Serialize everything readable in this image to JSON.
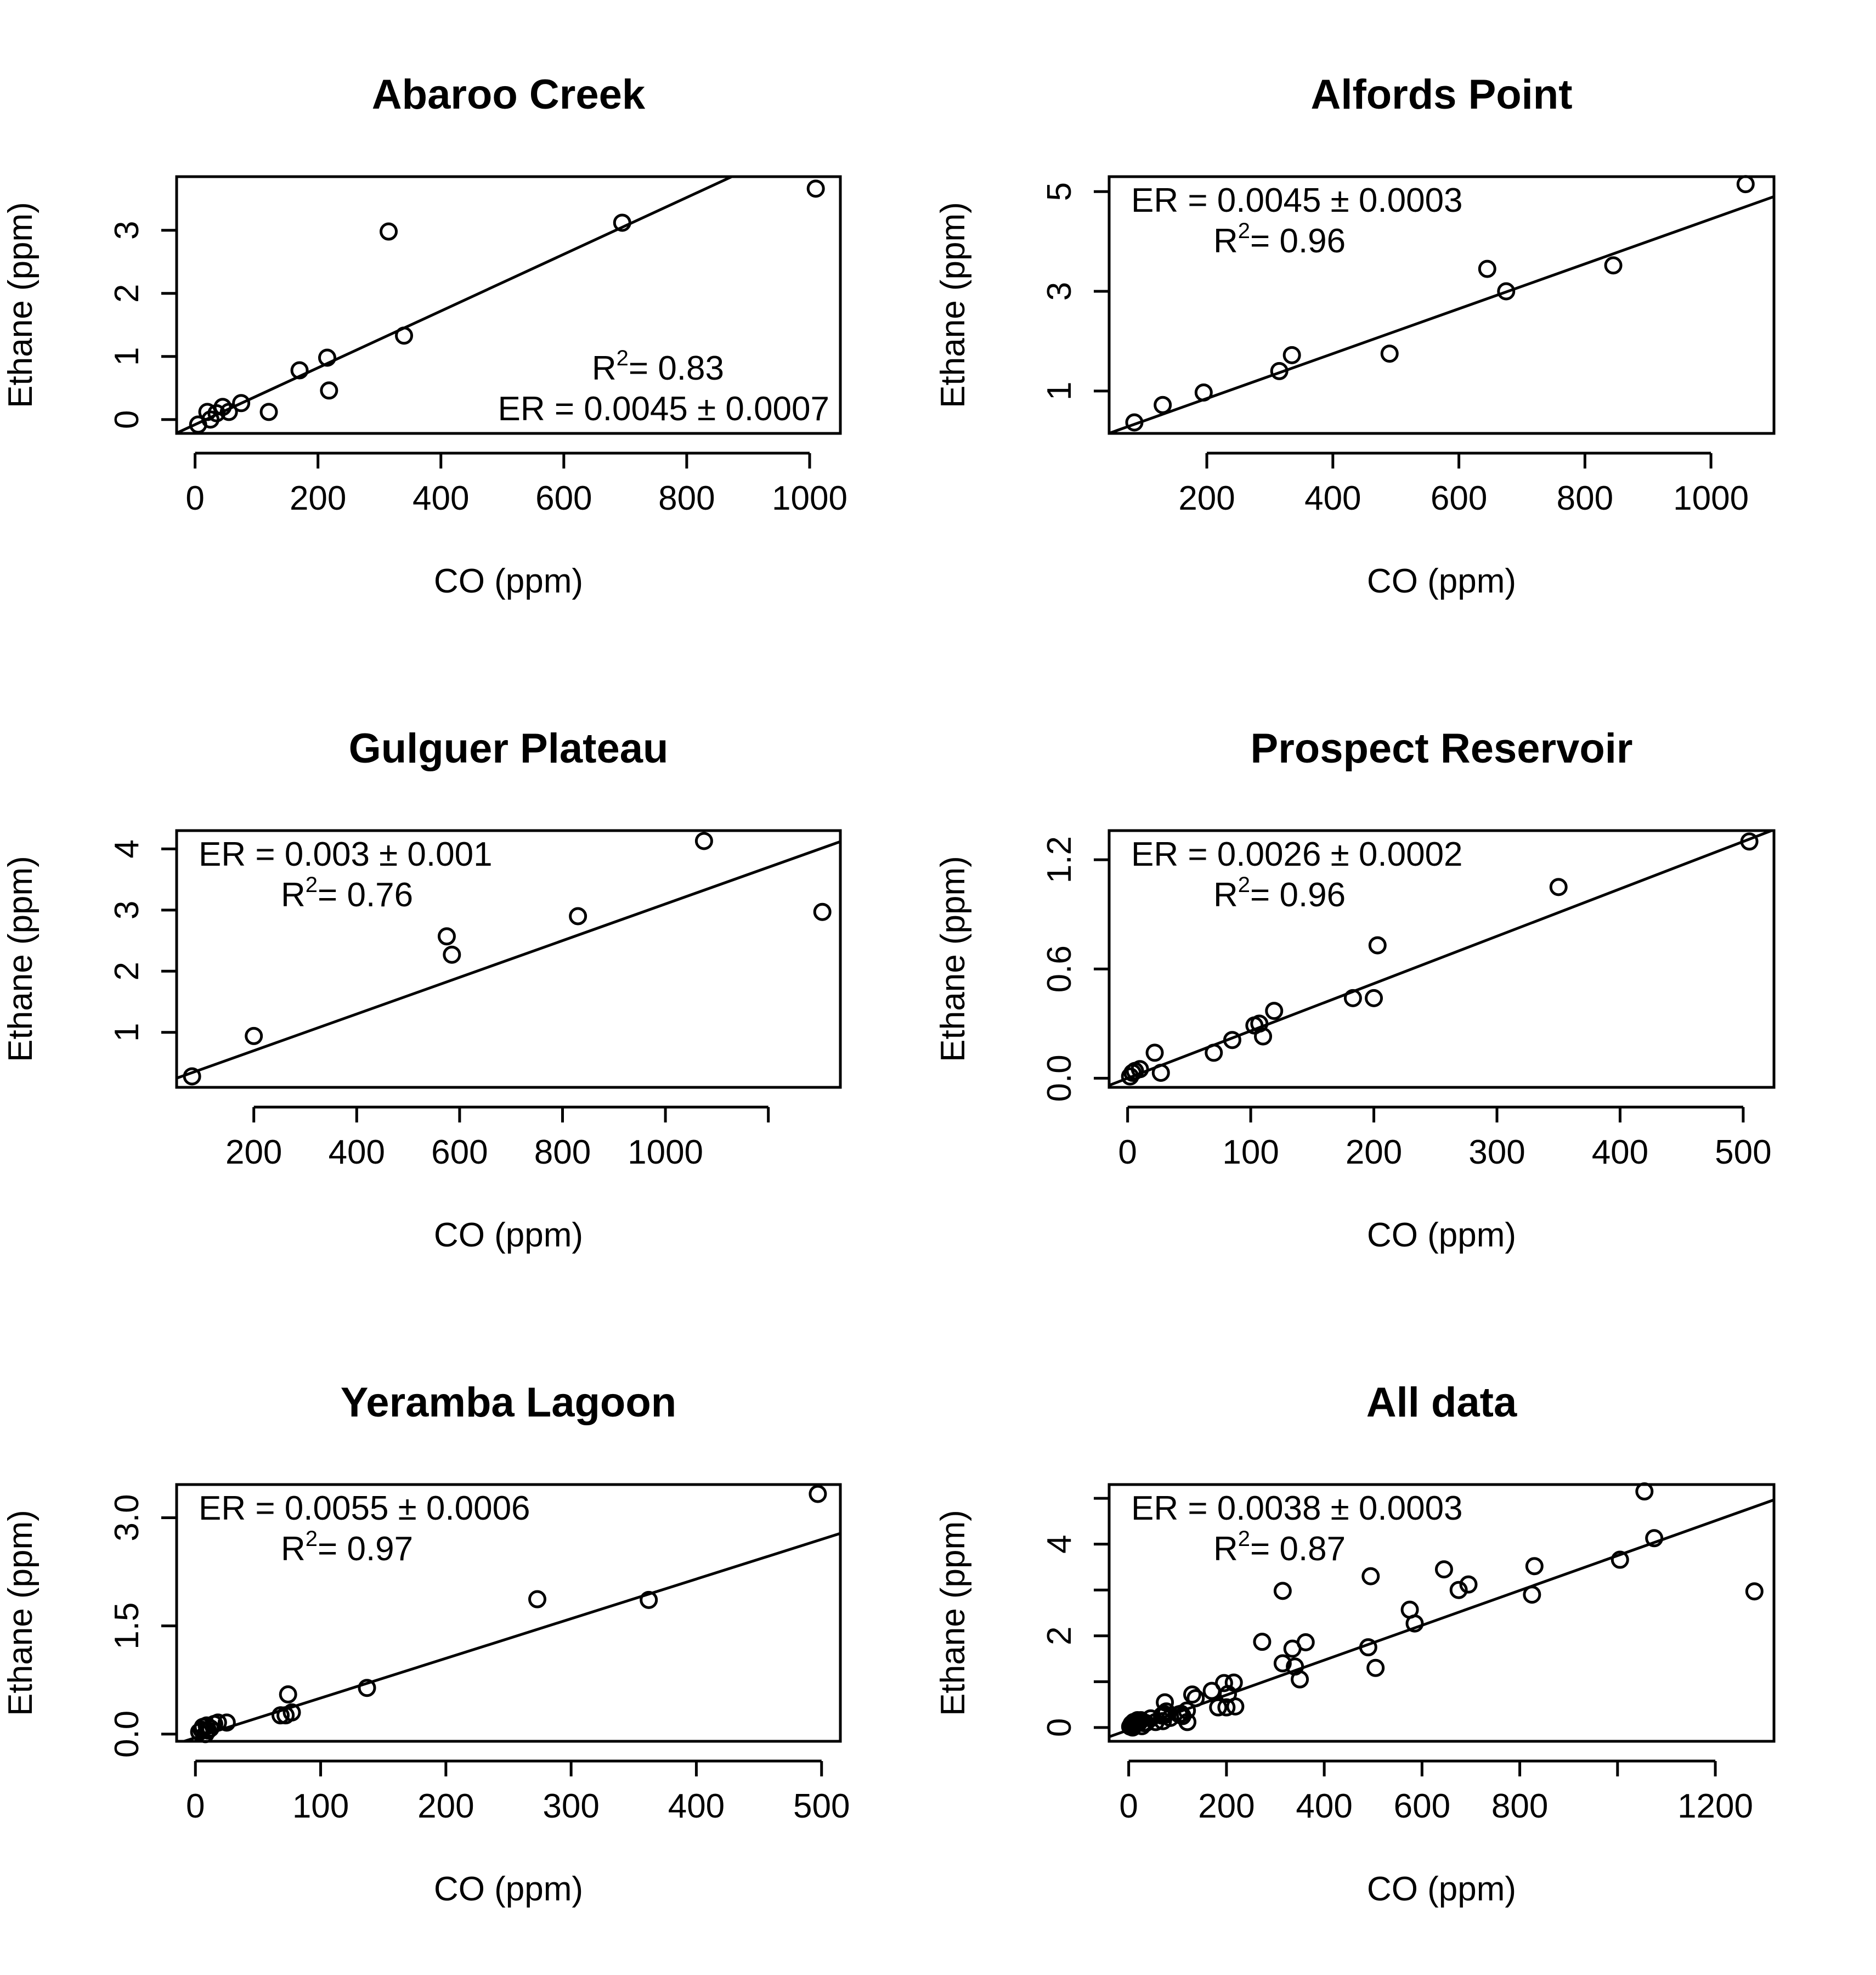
{
  "chart_data": [
    {
      "type": "scatter",
      "title": "Abaroo Creek",
      "xlabel": "CO (ppm)",
      "ylabel": "Ethane (ppm)",
      "xlim": [
        -30,
        1050
      ],
      "ylim": [
        -0.22,
        3.85
      ],
      "xticks": [
        0,
        200,
        400,
        600,
        800,
        1000
      ],
      "yticks": [
        0,
        1,
        2,
        3
      ],
      "annotations": {
        "r2": "= 0.83",
        "er": "ER = 0.0045 ± 0.0007"
      },
      "annotation_placement": "bottom-right",
      "fit": {
        "slope": 0.0045,
        "intercept": -0.08
      },
      "x": [
        5,
        20,
        25,
        35,
        45,
        55,
        75,
        120,
        170,
        215,
        218,
        315,
        340,
        695,
        1010
      ],
      "y": [
        -0.08,
        0.12,
        0.0,
        0.1,
        0.2,
        0.12,
        0.26,
        0.12,
        0.78,
        0.98,
        0.46,
        2.98,
        1.33,
        3.12,
        3.66
      ]
    },
    {
      "type": "scatter",
      "title": "Alfords Point",
      "xlabel": "CO (ppm)",
      "ylabel": "Ethane (ppm)",
      "xlim": [
        45,
        1100
      ],
      "ylim": [
        0.15,
        5.3
      ],
      "xticks": [
        200,
        400,
        600,
        800,
        1000
      ],
      "yticks": [
        1,
        3,
        5
      ],
      "annotations": {
        "er": "ER = 0.0045 ± 0.0003",
        "r2": "= 0.96"
      },
      "annotation_placement": "top-left",
      "fit": {
        "slope": 0.0045,
        "intercept": -0.05
      },
      "x": [
        85,
        130,
        195,
        315,
        335,
        490,
        645,
        675,
        845,
        1055
      ],
      "y": [
        0.37,
        0.72,
        0.97,
        1.4,
        1.72,
        1.75,
        3.45,
        3.0,
        3.52,
        5.15
      ]
    },
    {
      "type": "scatter",
      "title": "Gulguer Plateau",
      "xlabel": "CO (ppm)",
      "ylabel": "Ethane (ppm)",
      "xlim": [
        50,
        1340
      ],
      "ylim": [
        0.1,
        4.3
      ],
      "xticks": [
        200,
        400,
        600,
        800,
        1000,
        1200
      ],
      "xticklabels": [
        "200",
        "400",
        "600",
        "800",
        "1000",
        ""
      ],
      "yticks": [
        1,
        2,
        3,
        4
      ],
      "annotations": {
        "er": "ER = 0.003 ± 0.001",
        "r2": "= 0.76"
      },
      "annotation_placement": "top-left",
      "fit": {
        "slope": 0.003,
        "intercept": 0.1
      },
      "x": [
        80,
        200,
        575,
        585,
        830,
        1075,
        1305
      ],
      "y": [
        0.28,
        0.94,
        2.57,
        2.27,
        2.9,
        4.13,
        2.97
      ]
    },
    {
      "type": "scatter",
      "title": "Prospect Reservoir",
      "xlabel": "CO (ppm)",
      "ylabel": "Ethane (ppm)",
      "xlim": [
        -15,
        525
      ],
      "ylim": [
        -0.05,
        1.36
      ],
      "xticks": [
        0,
        100,
        200,
        300,
        400,
        500
      ],
      "yticks": [
        0.0,
        0.6,
        1.2
      ],
      "yticklabels": [
        "0.0",
        "0.6",
        "1.2"
      ],
      "annotations": {
        "er": "ER = 0.0026 ± 0.0002",
        "r2": "= 0.96"
      },
      "annotation_placement": "top-left",
      "fit": {
        "slope": 0.0026,
        "intercept": 0.0
      },
      "x": [
        2,
        4,
        6,
        10,
        22,
        27,
        70,
        85,
        103,
        107,
        110,
        119,
        183,
        200,
        203,
        350,
        505
      ],
      "y": [
        0.01,
        0.03,
        0.04,
        0.05,
        0.14,
        0.03,
        0.14,
        0.21,
        0.29,
        0.3,
        0.23,
        0.37,
        0.44,
        0.44,
        0.73,
        1.05,
        1.3
      ]
    },
    {
      "type": "scatter",
      "title": "Yeramba Lagoon",
      "xlabel": "CO (ppm)",
      "ylabel": "Ethane (ppm)",
      "xlim": [
        -15,
        515
      ],
      "ylim": [
        -0.1,
        3.46
      ],
      "xticks": [
        0,
        100,
        200,
        300,
        400,
        500
      ],
      "yticks": [
        0.0,
        1.5,
        3.0
      ],
      "yticklabels": [
        "0.0",
        "1.5",
        "3.0"
      ],
      "annotations": {
        "er": "ER = 0.0055 ± 0.0006",
        "r2": "= 0.97"
      },
      "annotation_placement": "top-left",
      "fit": {
        "slope": 0.0055,
        "intercept": -0.05
      },
      "x": [
        3,
        5,
        6,
        8,
        9,
        10,
        12,
        15,
        18,
        25,
        68,
        72,
        74,
        77,
        137,
        273,
        362,
        497
      ],
      "y": [
        0.03,
        0.06,
        0.1,
        0.0,
        0.12,
        0.05,
        0.08,
        0.14,
        0.16,
        0.16,
        0.26,
        0.26,
        0.55,
        0.3,
        0.64,
        1.87,
        1.86,
        3.33
      ]
    },
    {
      "type": "scatter",
      "title": "All data",
      "xlabel": "CO (ppm)",
      "ylabel": "Ethane (ppm)",
      "xlim": [
        -40,
        1320
      ],
      "ylim": [
        -0.3,
        5.3
      ],
      "xticks": [
        0,
        200,
        400,
        600,
        800,
        1000,
        1200
      ],
      "xticklabels": [
        "0",
        "200",
        "400",
        "600",
        "800",
        "",
        "1200"
      ],
      "yticks": [
        0,
        1,
        2,
        3,
        4,
        5
      ],
      "yticklabels": [
        "0",
        "",
        "2",
        "",
        "4",
        ""
      ],
      "annotations": {
        "er": "ER = 0.0038 ± 0.0003",
        "r2": "= 0.87"
      },
      "annotation_placement": "top-left",
      "fit": {
        "slope": 0.0038,
        "intercept": -0.05
      },
      "x": [
        3,
        5,
        6,
        8,
        10,
        12,
        15,
        18,
        20,
        22,
        25,
        27,
        30,
        35,
        45,
        55,
        68,
        70,
        72,
        74,
        75,
        77,
        85,
        103,
        107,
        110,
        119,
        120,
        130,
        137,
        170,
        183,
        195,
        200,
        203,
        215,
        218,
        273,
        315,
        315,
        335,
        340,
        350,
        362,
        490,
        495,
        505,
        575,
        585,
        645,
        675,
        695,
        825,
        830,
        1005,
        1055,
        1075,
        1280
      ],
      "y": [
        0.02,
        0.05,
        0.08,
        0.0,
        0.12,
        0.06,
        0.14,
        0.16,
        0.1,
        0.14,
        0.16,
        0.03,
        0.1,
        0.1,
        0.2,
        0.12,
        0.26,
        0.14,
        0.3,
        0.55,
        0.28,
        0.35,
        0.21,
        0.29,
        0.3,
        0.25,
        0.37,
        0.12,
        0.72,
        0.64,
        0.8,
        0.44,
        0.97,
        0.44,
        0.73,
        0.98,
        0.46,
        1.87,
        1.4,
        2.98,
        1.72,
        1.33,
        1.05,
        1.86,
        1.75,
        3.3,
        1.3,
        2.57,
        2.27,
        3.45,
        3.0,
        3.12,
        2.9,
        3.52,
        3.66,
        5.15,
        4.13,
        2.97
      ]
    }
  ]
}
